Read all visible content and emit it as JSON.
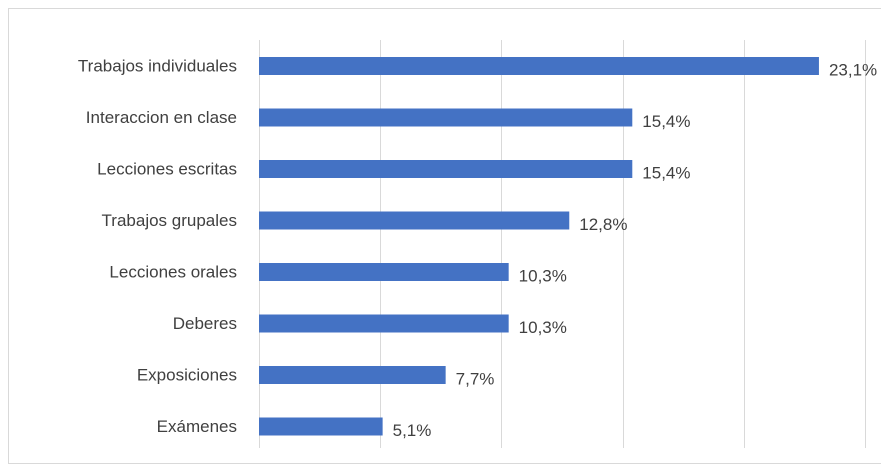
{
  "chart_data": {
    "type": "bar",
    "orientation": "horizontal",
    "title": "",
    "xlabel": "",
    "ylabel": "",
    "categories": [
      "Trabajos individuales",
      "Interaccion en clase",
      "Lecciones escritas",
      "Trabajos grupales",
      "Lecciones orales",
      "Deberes",
      "Exposiciones",
      "Exámenes"
    ],
    "values": [
      23.1,
      15.4,
      15.4,
      12.8,
      10.3,
      10.3,
      7.7,
      5.1
    ],
    "value_labels": [
      "23,1%",
      "15,4%",
      "15,4%",
      "12,8%",
      "10,3%",
      "10,3%",
      "7,7%",
      "5,1%"
    ],
    "xlim": [
      0,
      25
    ],
    "grid": true,
    "legend": "none",
    "bar_color": "#4472c4",
    "grid_color": "#d9d9d9",
    "text_color": "#404040"
  }
}
